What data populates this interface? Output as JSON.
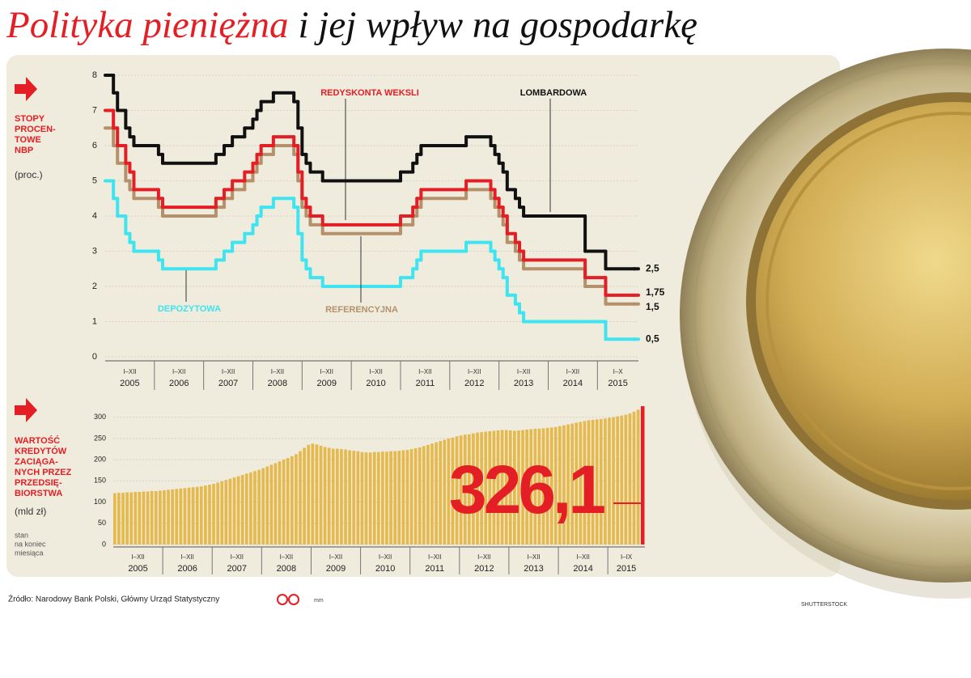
{
  "header": {
    "title_highlight": "Polityka pieniężna",
    "title_rest": "i jej wpływ na gospodarkę"
  },
  "chart_data": [
    {
      "type": "line",
      "y_label": [
        "STOPY",
        "PROCEN-",
        "TOWE",
        "NBP"
      ],
      "y_unit": "(proc.)",
      "x": [
        2005,
        2005.167,
        2005.25,
        2005.417,
        2005.5,
        2005.583,
        2006.083,
        2006.167,
        2007.25,
        2007.417,
        2007.583,
        2007.833,
        2008,
        2008.083,
        2008.167,
        2008.417,
        2008.833,
        2008.917,
        2009,
        2009.083,
        2009.167,
        2009.417,
        2011,
        2011.25,
        2011.333,
        2011.417,
        2012.333,
        2012.833,
        2012.917,
        2013,
        2013.083,
        2013.167,
        2013.333,
        2013.417,
        2013.5,
        2014.75,
        2015.167,
        2015.75
      ],
      "xlim": [
        2005,
        2015.833
      ],
      "xticks": [
        2005,
        2006,
        2007,
        2008,
        2009,
        2010,
        2011,
        2012,
        2013,
        2014,
        2015
      ],
      "x_periods": [
        "I–XII",
        "I–XII",
        "I–XII",
        "I–XII",
        "I–XII",
        "I–XII",
        "I–XII",
        "I–XII",
        "I–XII",
        "I–XII",
        "I–X"
      ],
      "ylim": [
        0,
        8
      ],
      "yticks": [
        0,
        1,
        2,
        3,
        4,
        5,
        6,
        7,
        8
      ],
      "grid": true,
      "step": "post",
      "series": [
        {
          "name": "LOMBARDOWA",
          "color": "#111111",
          "values": [
            8,
            7.5,
            7,
            6.5,
            6.25,
            6,
            5.75,
            5.5,
            5.75,
            6,
            6.25,
            6.5,
            6.75,
            7,
            7.25,
            7.5,
            7.25,
            6.5,
            5.75,
            5.5,
            5.25,
            5,
            5.25,
            5.5,
            5.75,
            6,
            6.25,
            6,
            5.75,
            5.5,
            5.25,
            4.75,
            4.5,
            4.25,
            4,
            3,
            2.5,
            2.5
          ],
          "value_labels": [
            null,
            null,
            null,
            null,
            null,
            null,
            null,
            null,
            null,
            null,
            null,
            null,
            null,
            null,
            null,
            null,
            null,
            null,
            null,
            null,
            null,
            null,
            null,
            null,
            null,
            null,
            null,
            null,
            null,
            null,
            null,
            null,
            null,
            null,
            null,
            null,
            null,
            "2,5"
          ]
        },
        {
          "name": "REDYSKONTA WEKSLI",
          "color": "#e31e24",
          "values": [
            7,
            6.5,
            6,
            5.5,
            5.25,
            4.75,
            4.5,
            4.25,
            4.5,
            4.75,
            5,
            5.25,
            5.5,
            5.75,
            6,
            6.25,
            6,
            5.25,
            4.5,
            4.25,
            4,
            3.75,
            4,
            4.25,
            4.5,
            4.75,
            5,
            4.75,
            4.5,
            4.25,
            4,
            3.5,
            3.25,
            3,
            2.75,
            2.25,
            1.75,
            1.75
          ],
          "value_labels": [
            null,
            null,
            null,
            null,
            null,
            null,
            null,
            null,
            null,
            null,
            null,
            null,
            null,
            null,
            null,
            null,
            null,
            null,
            null,
            null,
            null,
            null,
            null,
            null,
            null,
            null,
            null,
            null,
            null,
            null,
            null,
            null,
            null,
            null,
            null,
            null,
            null,
            "1,75"
          ]
        },
        {
          "name": "REFERENCYJNA",
          "color": "#b4916a",
          "values": [
            6.5,
            6,
            5.5,
            5,
            4.75,
            4.5,
            4.25,
            4,
            4.25,
            4.5,
            4.75,
            5,
            5.25,
            5.5,
            5.75,
            6,
            5.75,
            5,
            4.25,
            4,
            3.75,
            3.5,
            3.75,
            4,
            4.25,
            4.5,
            4.75,
            4.5,
            4.25,
            4,
            3.75,
            3.25,
            3,
            2.75,
            2.5,
            2,
            1.5,
            1.5
          ],
          "value_labels": [
            null,
            null,
            null,
            null,
            null,
            null,
            null,
            null,
            null,
            null,
            null,
            null,
            null,
            null,
            null,
            null,
            null,
            null,
            null,
            null,
            null,
            null,
            null,
            null,
            null,
            null,
            null,
            null,
            null,
            null,
            null,
            null,
            null,
            null,
            null,
            null,
            null,
            "1,5"
          ]
        },
        {
          "name": "DEPOZYTOWA",
          "color": "#3ee4ef",
          "values": [
            5,
            4.5,
            4,
            3.5,
            3.25,
            3,
            2.75,
            2.5,
            2.75,
            3,
            3.25,
            3.5,
            3.75,
            4,
            4.25,
            4.5,
            4.25,
            3.5,
            2.75,
            2.5,
            2.25,
            2,
            2.25,
            2.5,
            2.75,
            3,
            3.25,
            3,
            2.75,
            2.5,
            2.25,
            1.75,
            1.5,
            1.25,
            1,
            1,
            0.5,
            0.5
          ],
          "value_labels": [
            null,
            null,
            null,
            null,
            null,
            null,
            null,
            null,
            null,
            null,
            null,
            null,
            null,
            null,
            null,
            null,
            null,
            null,
            null,
            null,
            null,
            null,
            null,
            null,
            null,
            null,
            null,
            null,
            null,
            null,
            null,
            null,
            null,
            null,
            null,
            null,
            null,
            "0,5"
          ]
        }
      ]
    },
    {
      "type": "bar",
      "y_label": [
        "WARTOŚĆ",
        "KREDYTÓW",
        "ZACIĄGA-",
        "NYCH PRZEZ",
        "PRZEDSIĘ-",
        "BIORSTWA"
      ],
      "y_unit": "(mld zł)",
      "note": [
        "stan",
        "na koniec",
        "miesiąca"
      ],
      "x": [
        2005,
        2005.083,
        2005.167,
        2005.25,
        2005.333,
        2005.417,
        2005.5,
        2005.583,
        2005.667,
        2005.75,
        2005.833,
        2005.917,
        2006,
        2006.083,
        2006.167,
        2006.25,
        2006.333,
        2006.417,
        2006.5,
        2006.583,
        2006.667,
        2006.75,
        2006.833,
        2006.917,
        2007,
        2007.083,
        2007.167,
        2007.25,
        2007.333,
        2007.417,
        2007.5,
        2007.583,
        2007.667,
        2007.75,
        2007.833,
        2007.917,
        2008,
        2008.083,
        2008.167,
        2008.25,
        2008.333,
        2008.417,
        2008.5,
        2008.583,
        2008.667,
        2008.75,
        2008.833,
        2008.917,
        2009,
        2009.083,
        2009.167,
        2009.25,
        2009.333,
        2009.417,
        2009.5,
        2009.583,
        2009.667,
        2009.75,
        2009.833,
        2009.917,
        2010,
        2010.083,
        2010.167,
        2010.25,
        2010.333,
        2010.417,
        2010.5,
        2010.583,
        2010.667,
        2010.75,
        2010.833,
        2010.917,
        2011,
        2011.083,
        2011.167,
        2011.25,
        2011.333,
        2011.417,
        2011.5,
        2011.583,
        2011.667,
        2011.75,
        2011.833,
        2011.917,
        2012,
        2012.083,
        2012.167,
        2012.25,
        2012.333,
        2012.417,
        2012.5,
        2012.583,
        2012.667,
        2012.75,
        2012.833,
        2012.917,
        2013,
        2013.083,
        2013.167,
        2013.25,
        2013.333,
        2013.417,
        2013.5,
        2013.583,
        2013.667,
        2013.75,
        2013.833,
        2013.917,
        2014,
        2014.083,
        2014.167,
        2014.25,
        2014.333,
        2014.417,
        2014.5,
        2014.583,
        2014.667,
        2014.75,
        2014.833,
        2014.917,
        2015,
        2015.083,
        2015.167,
        2015.25,
        2015.333,
        2015.417,
        2015.5,
        2015.583,
        2015.667
      ],
      "xlim": [
        2005,
        2015.75
      ],
      "xticks": [
        2005,
        2006,
        2007,
        2008,
        2009,
        2010,
        2011,
        2012,
        2013,
        2014,
        2015
      ],
      "x_periods": [
        "I–XII",
        "I–XII",
        "I–XII",
        "I–XII",
        "I–XII",
        "I–XII",
        "I–XII",
        "I–XII",
        "I–XII",
        "I–XII",
        "I–IX"
      ],
      "ylim": [
        0,
        330
      ],
      "yticks": [
        0,
        50,
        100,
        150,
        200,
        250,
        300
      ],
      "grid": true,
      "color": "#e6b94c",
      "highlight_color": "#e31e24",
      "values": [
        121,
        122,
        122,
        123,
        123,
        124,
        124,
        125,
        125,
        126,
        126,
        127,
        128,
        129,
        130,
        131,
        132,
        133,
        134,
        135,
        136,
        137,
        139,
        141,
        143,
        146,
        149,
        152,
        155,
        158,
        161,
        164,
        167,
        170,
        173,
        176,
        180,
        184,
        188,
        192,
        196,
        200,
        204,
        208,
        213,
        220,
        228,
        235,
        238,
        236,
        233,
        230,
        228,
        226,
        226,
        225,
        224,
        222,
        221,
        220,
        218,
        217,
        217,
        218,
        218,
        219,
        219,
        220,
        220,
        221,
        222,
        223,
        225,
        227,
        229,
        232,
        235,
        238,
        241,
        244,
        247,
        250,
        252,
        255,
        257,
        259,
        260,
        262,
        264,
        265,
        266,
        267,
        268,
        269,
        270,
        270,
        269,
        268,
        269,
        270,
        271,
        272,
        273,
        273,
        274,
        275,
        276,
        277,
        279,
        281,
        283,
        285,
        287,
        289,
        291,
        293,
        294,
        295,
        296,
        297,
        299,
        300,
        302,
        304,
        306,
        309,
        313,
        318,
        326.1
      ],
      "value_labels": [
        null,
        null,
        null,
        null,
        null,
        null,
        null,
        null,
        null,
        null,
        null,
        null,
        null,
        null,
        null,
        null,
        null,
        null,
        null,
        null,
        null,
        null,
        null,
        null,
        null,
        null,
        null,
        null,
        null,
        null,
        null,
        null,
        null,
        null,
        null,
        null,
        null,
        null,
        null,
        null,
        null,
        null,
        null,
        null,
        null,
        null,
        null,
        null,
        null,
        null,
        null,
        null,
        null,
        null,
        null,
        null,
        null,
        null,
        null,
        null,
        null,
        null,
        null,
        null,
        null,
        null,
        null,
        null,
        null,
        null,
        null,
        null,
        null,
        null,
        null,
        null,
        null,
        null,
        null,
        null,
        null,
        null,
        null,
        null,
        null,
        null,
        null,
        null,
        null,
        null,
        null,
        null,
        null,
        null,
        null,
        null,
        null,
        null,
        null,
        null,
        null,
        null,
        null,
        null,
        null,
        null,
        null,
        null,
        null,
        null,
        null,
        null,
        null,
        null,
        null,
        null,
        null,
        null,
        null,
        null,
        null,
        null,
        null,
        null,
        null,
        null,
        null,
        null,
        "326,1"
      ]
    }
  ],
  "footer": {
    "source": "Źródło: Narodowy Bank Polski, Główny Urząd Statystyczny",
    "author": "mm",
    "credit": "SHUTTERSTOCK"
  }
}
